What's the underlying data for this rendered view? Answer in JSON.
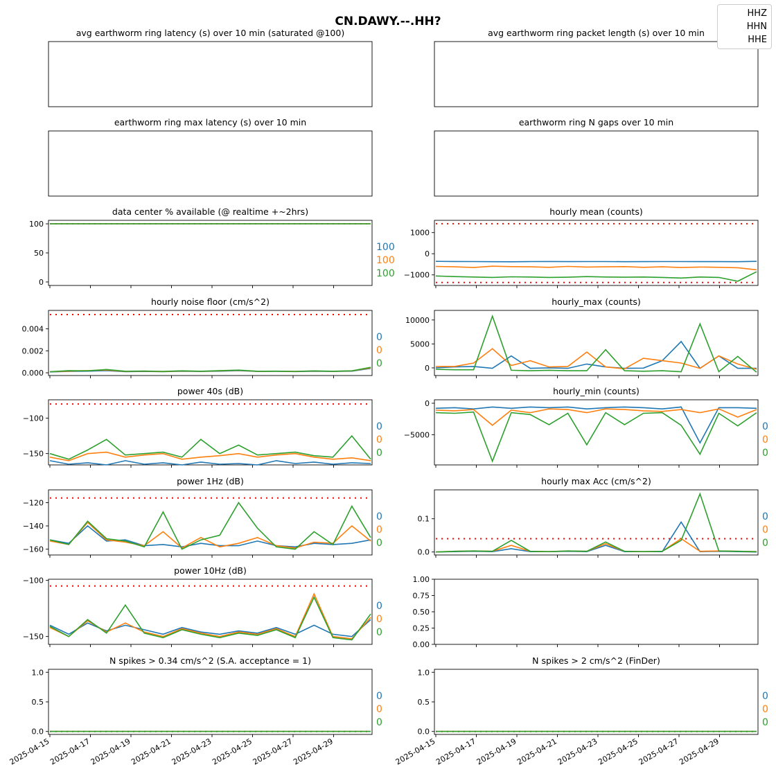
{
  "figure": {
    "title": "CN.DAWY.--.HH?"
  },
  "legend": {
    "entries": [
      "HHZ",
      "HHN",
      "HHE"
    ]
  },
  "colors": {
    "HHZ": "#1f77b4",
    "HHN": "#ff7f0e",
    "HHE": "#2ca02c",
    "threshold": "#ff0000"
  },
  "chart_data": [
    {
      "id": "p1",
      "type": "line",
      "title": "avg earthworm ring latency (s)   over 10 min (saturated @100)",
      "empty": true,
      "series": []
    },
    {
      "id": "p2",
      "type": "line",
      "title": "avg earthworm ring packet length (s)   over 10 min",
      "empty": true,
      "series": []
    },
    {
      "id": "p3",
      "type": "line",
      "title": "earthworm ring max latency (s)   over 10 min",
      "empty": true,
      "series": []
    },
    {
      "id": "p4",
      "type": "line",
      "title": "earthworm ring N gaps   over 10 min",
      "empty": true,
      "series": []
    },
    {
      "id": "p5",
      "type": "line",
      "title": "data center % available (@ realtime +~2hrs)",
      "ylim": [
        -6,
        106
      ],
      "yticks": [
        "0",
        "50",
        "100"
      ],
      "ytick_values": [
        0,
        50,
        100
      ],
      "thresholds": [
        100
      ],
      "side_labels": [
        "100",
        "100",
        "100"
      ],
      "series": [
        {
          "name": "HHZ",
          "values": [
            100,
            100,
            100,
            100,
            100,
            100,
            100,
            100,
            100,
            100,
            100,
            100,
            100,
            100,
            100,
            100,
            100
          ]
        },
        {
          "name": "HHN",
          "values": [
            100,
            100,
            100,
            100,
            100,
            100,
            100,
            100,
            100,
            100,
            100,
            100,
            100,
            100,
            100,
            100,
            100
          ]
        },
        {
          "name": "HHE",
          "values": [
            100,
            100,
            100,
            100,
            100,
            100,
            100,
            100,
            100,
            100,
            100,
            100,
            100,
            100,
            100,
            100,
            100
          ]
        }
      ]
    },
    {
      "id": "p6",
      "type": "line",
      "title": "hourly mean (counts)",
      "ylim": [
        -1500,
        1580
      ],
      "yticks": [
        "−1000",
        "0",
        "1000"
      ],
      "ytick_values": [
        -1000,
        0,
        1000
      ],
      "thresholds": [
        1420,
        -1360
      ],
      "side_labels": [],
      "series": [
        {
          "name": "HHZ",
          "values": [
            -360,
            -365,
            -370,
            -375,
            -380,
            -370,
            -365,
            -372,
            -368,
            -370,
            -375,
            -372,
            -368,
            -370,
            -372,
            -374,
            -375,
            -360
          ]
        },
        {
          "name": "HHN",
          "values": [
            -600,
            -620,
            -650,
            -590,
            -610,
            -620,
            -640,
            -600,
            -630,
            -620,
            -610,
            -640,
            -620,
            -650,
            -630,
            -640,
            -660,
            -760
          ]
        },
        {
          "name": "HHE",
          "values": [
            -1050,
            -1080,
            -1100,
            -1120,
            -1090,
            -1100,
            -1120,
            -1110,
            -1080,
            -1100,
            -1110,
            -1100,
            -1120,
            -1150,
            -1100,
            -1120,
            -1300,
            -850
          ]
        }
      ]
    },
    {
      "id": "p7",
      "type": "line",
      "title": "hourly noise floor (cm/s^2)",
      "ylim": [
        -0.00025,
        0.00568
      ],
      "yticks": [
        "0.000",
        "0.002",
        "0.004"
      ],
      "ytick_values": [
        0,
        0.002,
        0.004
      ],
      "thresholds": [
        0.0053
      ],
      "side_labels": [
        "0",
        "0",
        "0"
      ],
      "series": [
        {
          "name": "HHZ",
          "values": [
            8e-05,
            0.00012,
            0.00015,
            0.0002,
            0.0001,
            0.00012,
            0.0001,
            0.00014,
            0.00012,
            0.00015,
            0.0002,
            0.00012,
            0.00013,
            0.00011,
            0.00014,
            0.00012,
            0.00015,
            0.0004
          ]
        },
        {
          "name": "HHN",
          "values": [
            0.0001,
            0.00015,
            0.0002,
            0.00025,
            0.00012,
            0.00015,
            0.00011,
            0.00016,
            0.00013,
            0.00018,
            0.00022,
            0.00013,
            0.00014,
            0.00012,
            0.00016,
            0.00013,
            0.00017,
            0.00045
          ]
        },
        {
          "name": "HHE",
          "values": [
            0.0001,
            0.0002,
            0.00018,
            0.0003,
            0.00014,
            0.00016,
            0.00012,
            0.00018,
            0.00014,
            0.0002,
            0.00024,
            0.00014,
            0.00015,
            0.00013,
            0.00017,
            0.00014,
            0.00018,
            0.0005
          ]
        }
      ]
    },
    {
      "id": "p8",
      "type": "line",
      "title": "hourly_max (counts)",
      "ylim": [
        -1600,
        12000
      ],
      "yticks": [
        "0",
        "5000",
        "10000"
      ],
      "ytick_values": [
        0,
        5000,
        10000
      ],
      "thresholds": [],
      "side_labels": [],
      "series": [
        {
          "name": "HHZ",
          "values": [
            0,
            200,
            300,
            -100,
            2500,
            -100,
            0,
            -100,
            800,
            200,
            -100,
            -50,
            1500,
            5500,
            -100,
            2500,
            -100,
            -100
          ]
        },
        {
          "name": "HHN",
          "values": [
            300,
            300,
            1000,
            4000,
            500,
            1500,
            200,
            300,
            3300,
            200,
            -200,
            2000,
            1500,
            1000,
            -100,
            2500,
            800,
            -300
          ]
        },
        {
          "name": "HHE",
          "values": [
            -300,
            -400,
            -400,
            10800,
            -500,
            -600,
            -500,
            -600,
            -600,
            3800,
            -600,
            -700,
            -600,
            -800,
            9200,
            -800,
            2400,
            -900
          ]
        }
      ]
    },
    {
      "id": "p9",
      "type": "line",
      "title": "power 40s (dB)",
      "ylim": [
        -166,
        -74
      ],
      "yticks": [
        "−150",
        "−100"
      ],
      "ytick_values": [
        -150,
        -100
      ],
      "thresholds": [
        -80
      ],
      "side_labels": [
        "0",
        "0",
        "0"
      ],
      "series": [
        {
          "name": "HHZ",
          "values": [
            -160,
            -165,
            -163,
            -166,
            -160,
            -165,
            -163,
            -166,
            -162,
            -165,
            -164,
            -166,
            -160,
            -164,
            -162,
            -165,
            -163,
            -164
          ]
        },
        {
          "name": "HHN",
          "values": [
            -155,
            -160,
            -150,
            -148,
            -155,
            -152,
            -150,
            -158,
            -155,
            -153,
            -150,
            -155,
            -152,
            -150,
            -155,
            -158,
            -156,
            -160
          ]
        },
        {
          "name": "HHE",
          "values": [
            -150,
            -158,
            -145,
            -130,
            -152,
            -150,
            -148,
            -155,
            -130,
            -150,
            -138,
            -152,
            -150,
            -148,
            -153,
            -155,
            -125,
            -158
          ]
        }
      ]
    },
    {
      "id": "p10",
      "type": "line",
      "title": "hourly_min (counts)",
      "ylim": [
        -9800,
        550
      ],
      "yticks": [
        "−5000",
        "0"
      ],
      "ytick_values": [
        -5000,
        0
      ],
      "thresholds": [],
      "side_labels": [
        "0",
        "0",
        "0"
      ],
      "series": [
        {
          "name": "HHZ",
          "values": [
            -800,
            -700,
            -900,
            -600,
            -800,
            -600,
            -700,
            -600,
            -900,
            -700,
            -600,
            -700,
            -900,
            -600,
            -6300,
            -700,
            -700,
            -800
          ]
        },
        {
          "name": "HHN",
          "values": [
            -1100,
            -1200,
            -1000,
            -3500,
            -1100,
            -1500,
            -900,
            -1000,
            -1500,
            -900,
            -1000,
            -1200,
            -1300,
            -1000,
            -1500,
            -900,
            -2200,
            -1000
          ]
        },
        {
          "name": "HHE",
          "values": [
            -1500,
            -1600,
            -1400,
            -9200,
            -1500,
            -1800,
            -3400,
            -1600,
            -6600,
            -1500,
            -3400,
            -1600,
            -1500,
            -3500,
            -8100,
            -1600,
            -3600,
            -1500
          ]
        }
      ]
    },
    {
      "id": "p11",
      "type": "line",
      "title": "power 1Hz (dB)",
      "ylim": [
        -165,
        -109
      ],
      "yticks": [
        "−160",
        "−140",
        "−120"
      ],
      "ytick_values": [
        -160,
        -140,
        -120
      ],
      "thresholds": [
        -116
      ],
      "side_labels": [
        "0",
        "0",
        "0"
      ],
      "series": [
        {
          "name": "HHZ",
          "values": [
            -152,
            -155,
            -140,
            -153,
            -152,
            -157,
            -156,
            -158,
            -155,
            -157,
            -157,
            -153,
            -157,
            -158,
            -155,
            -156,
            -155,
            -152
          ]
        },
        {
          "name": "HHN",
          "values": [
            -153,
            -156,
            -137,
            -152,
            -154,
            -157,
            -145,
            -159,
            -150,
            -158,
            -155,
            -150,
            -157,
            -159,
            -154,
            -155,
            -140,
            -153
          ]
        },
        {
          "name": "HHE",
          "values": [
            -152,
            -156,
            -136,
            -151,
            -153,
            -158,
            -128,
            -160,
            -152,
            -148,
            -120,
            -142,
            -158,
            -160,
            -145,
            -156,
            -123,
            -150
          ]
        }
      ]
    },
    {
      "id": "p12",
      "type": "line",
      "title": "hourly max Acc (cm/s^2)",
      "ylim": [
        -0.009,
        0.187
      ],
      "yticks": [
        "0.0",
        "0.1"
      ],
      "ytick_values": [
        0,
        0.1
      ],
      "thresholds": [
        0.04
      ],
      "side_labels": [
        "0",
        "0",
        "0"
      ],
      "series": [
        {
          "name": "HHZ",
          "values": [
            0,
            0.001,
            0.002,
            0.001,
            0.01,
            0.001,
            0.001,
            0.002,
            0.001,
            0.02,
            0.001,
            0.001,
            0.001,
            0.09,
            0.001,
            0.002,
            0.001,
            0
          ]
        },
        {
          "name": "HHN",
          "values": [
            0,
            0.002,
            0.003,
            0.002,
            0.02,
            0.002,
            0.001,
            0.003,
            0.002,
            0.025,
            0.002,
            0.001,
            0.002,
            0.04,
            0.002,
            0.003,
            0.002,
            0.001
          ]
        },
        {
          "name": "HHE",
          "values": [
            0,
            0.002,
            0.003,
            0.002,
            0.035,
            0.002,
            0.001,
            0.003,
            0.002,
            0.03,
            0.002,
            0.001,
            0.002,
            0.035,
            0.175,
            0.003,
            0.002,
            0.001
          ]
        }
      ]
    },
    {
      "id": "p13",
      "type": "line",
      "title": "power 10Hz (dB)",
      "ylim": [
        -157,
        -99
      ],
      "yticks": [
        "−150",
        "−100"
      ],
      "ytick_values": [
        -150,
        -100
      ],
      "thresholds": [
        -105
      ],
      "side_labels": [
        "0",
        "0",
        "0"
      ],
      "series": [
        {
          "name": "HHZ",
          "values": [
            -140,
            -148,
            -138,
            -145,
            -140,
            -144,
            -148,
            -142,
            -146,
            -148,
            -145,
            -147,
            -142,
            -148,
            -140,
            -148,
            -150,
            -135
          ]
        },
        {
          "name": "HHN",
          "values": [
            -142,
            -150,
            -136,
            -146,
            -138,
            -146,
            -150,
            -143,
            -147,
            -150,
            -146,
            -148,
            -143,
            -150,
            -112,
            -150,
            -152,
            -133
          ]
        },
        {
          "name": "HHE",
          "values": [
            -141,
            -150,
            -135,
            -147,
            -122,
            -147,
            -151,
            -144,
            -148,
            -151,
            -147,
            -149,
            -144,
            -151,
            -115,
            -151,
            -153,
            -130
          ]
        }
      ]
    },
    {
      "id": "p14",
      "type": "line",
      "title": "",
      "ylim": [
        0,
        1
      ],
      "yticks": [
        "0.00",
        "0.25",
        "0.50",
        "0.75",
        "1.00"
      ],
      "ytick_values": [
        0,
        0.25,
        0.5,
        0.75,
        1.0
      ],
      "thresholds": [],
      "side_labels": [],
      "series": []
    },
    {
      "id": "p15",
      "type": "line",
      "title": "N spikes > 0.34 cm/s^2 (S.A. acceptance = 1)",
      "ylim": [
        -0.05,
        1.05
      ],
      "yticks": [
        "0.0",
        "0.5",
        "1.0"
      ],
      "ytick_values": [
        0,
        0.5,
        1.0
      ],
      "thresholds": [
        0
      ],
      "side_labels": [
        "0",
        "0",
        "0"
      ],
      "x_tick_labels": [
        "2025-04-15",
        "2025-04-17",
        "2025-04-19",
        "2025-04-21",
        "2025-04-23",
        "2025-04-25",
        "2025-04-27",
        "2025-04-29"
      ],
      "series": [
        {
          "name": "HHZ",
          "values": [
            0,
            0,
            0,
            0,
            0,
            0,
            0,
            0,
            0,
            0,
            0,
            0,
            0,
            0,
            0,
            0,
            0,
            0
          ]
        },
        {
          "name": "HHN",
          "values": [
            0,
            0,
            0,
            0,
            0,
            0,
            0,
            0,
            0,
            0,
            0,
            0,
            0,
            0,
            0,
            0,
            0,
            0
          ]
        },
        {
          "name": "HHE",
          "values": [
            0,
            0,
            0,
            0,
            0,
            0,
            0,
            0,
            0,
            0,
            0,
            0,
            0,
            0,
            0,
            0,
            0,
            0
          ]
        }
      ]
    },
    {
      "id": "p16",
      "type": "line",
      "title": "N spikes > 2 cm/s^2 (FinDer)",
      "ylim": [
        -0.05,
        1.05
      ],
      "yticks": [
        "0.0",
        "0.5",
        "1.0"
      ],
      "ytick_values": [
        0,
        0.5,
        1.0
      ],
      "thresholds": [
        0
      ],
      "side_labels": [
        "0",
        "0",
        "0"
      ],
      "x_tick_labels": [
        "2025-04-15",
        "2025-04-17",
        "2025-04-19",
        "2025-04-21",
        "2025-04-23",
        "2025-04-25",
        "2025-04-27",
        "2025-04-29"
      ],
      "series": [
        {
          "name": "HHZ",
          "values": [
            0,
            0,
            0,
            0,
            0,
            0,
            0,
            0,
            0,
            0,
            0,
            0,
            0,
            0,
            0,
            0,
            0,
            0
          ]
        },
        {
          "name": "HHN",
          "values": [
            0,
            0,
            0,
            0,
            0,
            0,
            0,
            0,
            0,
            0,
            0,
            0,
            0,
            0,
            0,
            0,
            0,
            0
          ]
        },
        {
          "name": "HHE",
          "values": [
            0,
            0,
            0,
            0,
            0,
            0,
            0,
            0,
            0,
            0,
            0,
            0,
            0,
            0,
            0,
            0,
            0,
            0
          ]
        }
      ]
    }
  ]
}
